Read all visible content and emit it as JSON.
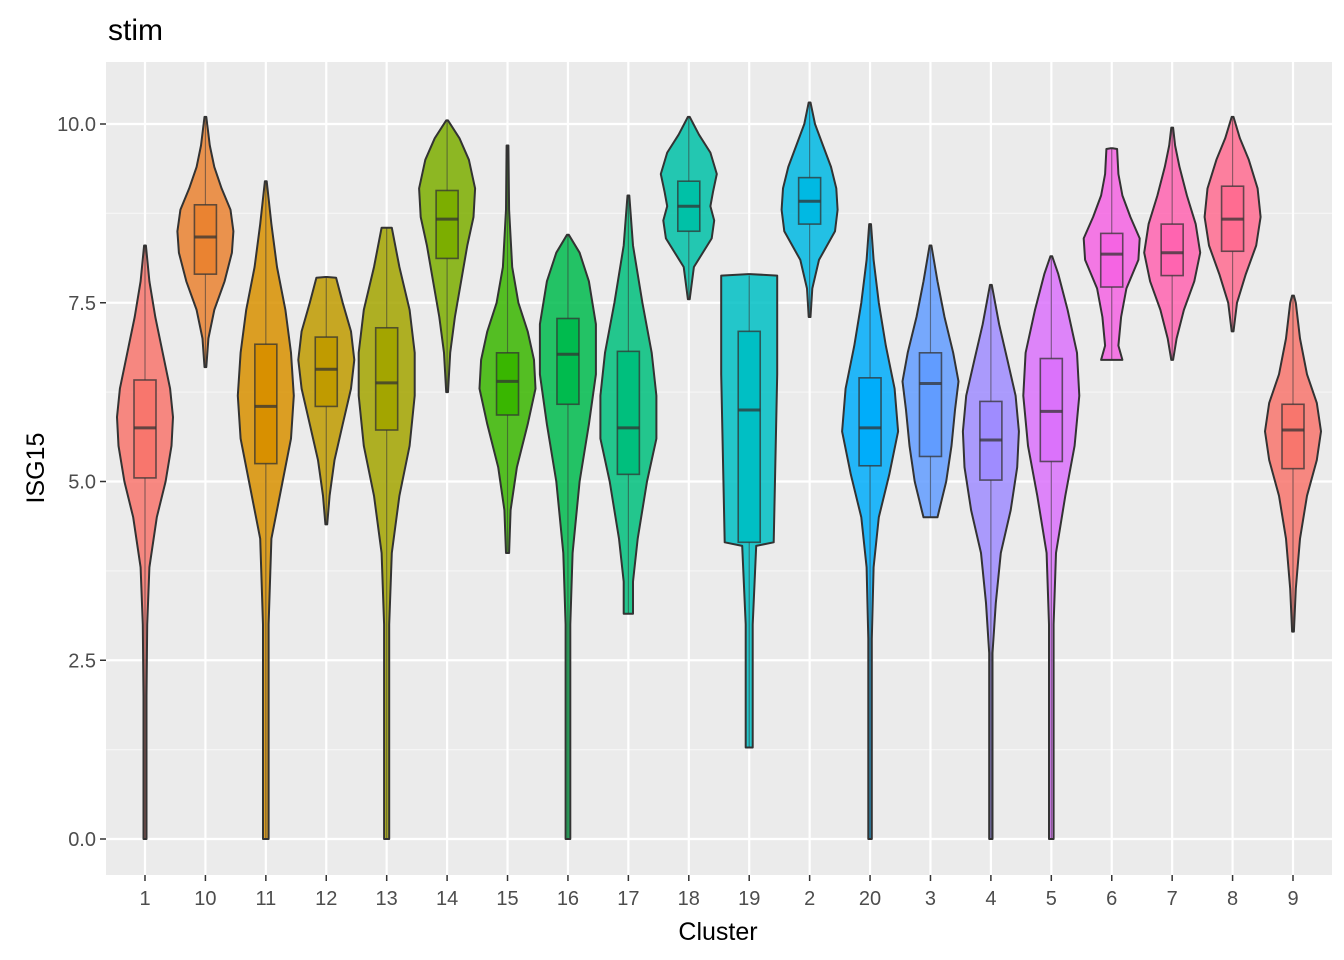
{
  "chart_data": {
    "type": "violin",
    "title": "stim",
    "xlabel": "Cluster",
    "ylabel": "ISG15",
    "ylim": [
      -0.5,
      10.8
    ],
    "yticks": [
      0.0,
      2.5,
      5.0,
      7.5,
      10.0
    ],
    "ytick_labels": [
      "0.0",
      "2.5",
      "5.0",
      "7.5",
      "10.0"
    ],
    "grid": true,
    "legend": "none",
    "categories": [
      "1",
      "10",
      "11",
      "12",
      "13",
      "14",
      "15",
      "16",
      "17",
      "18",
      "19",
      "2",
      "20",
      "3",
      "4",
      "5",
      "6",
      "7",
      "8",
      "9"
    ],
    "series": [
      {
        "name": "1",
        "color": "#F8766D",
        "min": 0.0,
        "max": 8.3,
        "q1": 5.05,
        "median": 5.75,
        "q3": 6.42,
        "profile": [
          [
            0.0,
            1
          ],
          [
            2.0,
            1
          ],
          [
            3.0,
            1.5
          ],
          [
            3.8,
            3
          ],
          [
            4.5,
            8
          ],
          [
            5.0,
            14
          ],
          [
            5.5,
            18
          ],
          [
            5.9,
            19
          ],
          [
            6.3,
            17
          ],
          [
            6.8,
            12
          ],
          [
            7.3,
            7
          ],
          [
            7.8,
            3
          ],
          [
            8.3,
            0
          ]
        ]
      },
      {
        "name": "10",
        "color": "#EA8331",
        "min": 6.6,
        "max": 10.1,
        "q1": 7.9,
        "median": 8.42,
        "q3": 8.87,
        "profile": [
          [
            6.6,
            0
          ],
          [
            7.0,
            2
          ],
          [
            7.4,
            6
          ],
          [
            7.8,
            13
          ],
          [
            8.2,
            18
          ],
          [
            8.5,
            19
          ],
          [
            8.8,
            17
          ],
          [
            9.1,
            11
          ],
          [
            9.4,
            6
          ],
          [
            9.7,
            3
          ],
          [
            10.1,
            0
          ]
        ]
      },
      {
        "name": "11",
        "color": "#D89000",
        "min": 0.0,
        "max": 9.2,
        "q1": 5.25,
        "median": 6.05,
        "q3": 6.92,
        "profile": [
          [
            0.0,
            1
          ],
          [
            3.0,
            1
          ],
          [
            4.2,
            2
          ],
          [
            5.0,
            6
          ],
          [
            5.6,
            9
          ],
          [
            6.2,
            10
          ],
          [
            6.8,
            9
          ],
          [
            7.4,
            7
          ],
          [
            8.0,
            4
          ],
          [
            8.6,
            2
          ],
          [
            9.2,
            0
          ]
        ]
      },
      {
        "name": "12",
        "color": "#C09B00",
        "min": 4.4,
        "max": 7.85,
        "q1": 6.05,
        "median": 6.57,
        "q3": 7.02,
        "profile": [
          [
            4.4,
            0
          ],
          [
            4.8,
            2
          ],
          [
            5.3,
            5
          ],
          [
            5.8,
            10
          ],
          [
            6.3,
            15
          ],
          [
            6.7,
            17
          ],
          [
            7.1,
            15
          ],
          [
            7.5,
            10
          ],
          [
            7.85,
            6
          ],
          [
            7.86,
            0
          ]
        ]
      },
      {
        "name": "13",
        "color": "#A3A500",
        "min": 0.0,
        "max": 8.55,
        "q1": 5.72,
        "median": 6.38,
        "q3": 7.15,
        "profile": [
          [
            0.0,
            1
          ],
          [
            3.0,
            1
          ],
          [
            4.0,
            2
          ],
          [
            4.8,
            5
          ],
          [
            5.5,
            9
          ],
          [
            6.2,
            11
          ],
          [
            6.8,
            11
          ],
          [
            7.4,
            9
          ],
          [
            8.0,
            5
          ],
          [
            8.55,
            2
          ]
        ]
      },
      {
        "name": "14",
        "color": "#7CAE00",
        "min": 6.25,
        "max": 10.05,
        "q1": 8.12,
        "median": 8.67,
        "q3": 9.07,
        "profile": [
          [
            6.25,
            0
          ],
          [
            6.8,
            2
          ],
          [
            7.3,
            5
          ],
          [
            7.8,
            9
          ],
          [
            8.3,
            13
          ],
          [
            8.7,
            17
          ],
          [
            9.1,
            18
          ],
          [
            9.5,
            14
          ],
          [
            9.8,
            8
          ],
          [
            10.05,
            0
          ]
        ]
      },
      {
        "name": "15",
        "color": "#39B600",
        "min": 4.0,
        "max": 9.7,
        "q1": 5.93,
        "median": 6.4,
        "q3": 6.8,
        "profile": [
          [
            4.0,
            1
          ],
          [
            4.6,
            2
          ],
          [
            5.2,
            6
          ],
          [
            5.8,
            13
          ],
          [
            6.3,
            18
          ],
          [
            6.7,
            17
          ],
          [
            7.1,
            13
          ],
          [
            7.5,
            7
          ],
          [
            8.0,
            3
          ],
          [
            8.8,
            1
          ],
          [
            9.7,
            0
          ]
        ]
      },
      {
        "name": "16",
        "color": "#00BB4E",
        "min": 0.0,
        "max": 8.45,
        "q1": 6.08,
        "median": 6.78,
        "q3": 7.28,
        "profile": [
          [
            0.0,
            1
          ],
          [
            3.0,
            1
          ],
          [
            4.0,
            2
          ],
          [
            5.0,
            5
          ],
          [
            5.8,
            9
          ],
          [
            6.5,
            12
          ],
          [
            7.2,
            12
          ],
          [
            7.8,
            9
          ],
          [
            8.2,
            5
          ],
          [
            8.45,
            0
          ]
        ]
      },
      {
        "name": "17",
        "color": "#00BF7D",
        "min": 3.15,
        "max": 9.0,
        "q1": 5.1,
        "median": 5.75,
        "q3": 6.82,
        "profile": [
          [
            3.15,
            1
          ],
          [
            3.6,
            1
          ],
          [
            4.2,
            2
          ],
          [
            5.0,
            4
          ],
          [
            5.6,
            6
          ],
          [
            6.2,
            6
          ],
          [
            6.8,
            5
          ],
          [
            7.5,
            3
          ],
          [
            8.3,
            1
          ],
          [
            9.0,
            0
          ]
        ]
      },
      {
        "name": "18",
        "color": "#00C1A7",
        "min": 7.55,
        "max": 10.1,
        "q1": 8.5,
        "median": 8.85,
        "q3": 9.2,
        "profile": [
          [
            7.55,
            0
          ],
          [
            8.0,
            4
          ],
          [
            8.4,
            18
          ],
          [
            8.65,
            20
          ],
          [
            8.85,
            17
          ],
          [
            9.05,
            19
          ],
          [
            9.3,
            22
          ],
          [
            9.6,
            17
          ],
          [
            9.85,
            8
          ],
          [
            10.1,
            0
          ]
        ]
      },
      {
        "name": "19",
        "color": "#00BFC4",
        "min": 1.28,
        "max": 7.88,
        "q1": 4.15,
        "median": 6.0,
        "q3": 7.1,
        "profile": [
          [
            1.28,
            1
          ],
          [
            3.0,
            1
          ],
          [
            4.1,
            2
          ],
          [
            4.15,
            7
          ],
          [
            6.5,
            8
          ],
          [
            7.7,
            8
          ],
          [
            7.88,
            8
          ],
          [
            7.9,
            0
          ]
        ]
      },
      {
        "name": "2",
        "color": "#00B9E3",
        "min": 7.3,
        "max": 10.3,
        "q1": 8.6,
        "median": 8.92,
        "q3": 9.25,
        "profile": [
          [
            7.3,
            0
          ],
          [
            7.7,
            2
          ],
          [
            8.1,
            7
          ],
          [
            8.5,
            19
          ],
          [
            8.8,
            21
          ],
          [
            9.1,
            20
          ],
          [
            9.4,
            16
          ],
          [
            9.7,
            10
          ],
          [
            10.0,
            4
          ],
          [
            10.3,
            0
          ]
        ]
      },
      {
        "name": "20",
        "color": "#00ADFA",
        "min": 0.0,
        "max": 8.6,
        "q1": 5.22,
        "median": 5.75,
        "q3": 6.45,
        "profile": [
          [
            0.0,
            1
          ],
          [
            2.8,
            1
          ],
          [
            3.8,
            2
          ],
          [
            4.5,
            5
          ],
          [
            5.1,
            11
          ],
          [
            5.7,
            16
          ],
          [
            6.3,
            14
          ],
          [
            6.9,
            9
          ],
          [
            7.5,
            5
          ],
          [
            8.1,
            2
          ],
          [
            8.6,
            0
          ]
        ]
      },
      {
        "name": "3",
        "color": "#619CFF",
        "min": 4.5,
        "max": 8.3,
        "q1": 5.35,
        "median": 6.37,
        "q3": 6.8,
        "profile": [
          [
            4.5,
            4
          ],
          [
            4.6,
            5
          ],
          [
            5.0,
            9
          ],
          [
            5.5,
            12
          ],
          [
            6.0,
            14
          ],
          [
            6.4,
            16
          ],
          [
            6.8,
            13
          ],
          [
            7.3,
            8
          ],
          [
            7.8,
            4
          ],
          [
            8.3,
            0
          ]
        ]
      },
      {
        "name": "4",
        "color": "#9F8CFF",
        "min": 0.0,
        "max": 7.75,
        "q1": 5.02,
        "median": 5.58,
        "q3": 6.12,
        "profile": [
          [
            0.0,
            1
          ],
          [
            2.6,
            1
          ],
          [
            3.3,
            3
          ],
          [
            4.0,
            6
          ],
          [
            4.6,
            12
          ],
          [
            5.2,
            16
          ],
          [
            5.7,
            17
          ],
          [
            6.2,
            15
          ],
          [
            6.7,
            10
          ],
          [
            7.2,
            5
          ],
          [
            7.75,
            0
          ]
        ]
      },
      {
        "name": "5",
        "color": "#DB72FB",
        "min": 0.0,
        "max": 8.15,
        "q1": 5.28,
        "median": 5.98,
        "q3": 6.72,
        "profile": [
          [
            0.0,
            1
          ],
          [
            3.0,
            1
          ],
          [
            4.0,
            2
          ],
          [
            4.8,
            6
          ],
          [
            5.5,
            10
          ],
          [
            6.2,
            12
          ],
          [
            6.8,
            11
          ],
          [
            7.4,
            7
          ],
          [
            7.9,
            3
          ],
          [
            8.15,
            0
          ]
        ]
      },
      {
        "name": "6",
        "color": "#F564E3",
        "min": 6.7,
        "max": 9.65,
        "q1": 7.72,
        "median": 8.18,
        "q3": 8.47,
        "profile": [
          [
            6.7,
            8
          ],
          [
            6.9,
            5
          ],
          [
            7.3,
            7
          ],
          [
            7.7,
            11
          ],
          [
            8.1,
            20
          ],
          [
            8.4,
            21
          ],
          [
            8.7,
            14
          ],
          [
            9.0,
            8
          ],
          [
            9.3,
            5
          ],
          [
            9.65,
            4
          ],
          [
            9.66,
            0
          ]
        ]
      },
      {
        "name": "7",
        "color": "#FF64B0",
        "min": 6.7,
        "max": 9.95,
        "q1": 7.88,
        "median": 8.2,
        "q3": 8.6,
        "profile": [
          [
            6.7,
            0
          ],
          [
            7.0,
            3
          ],
          [
            7.4,
            8
          ],
          [
            7.8,
            15
          ],
          [
            8.2,
            19
          ],
          [
            8.6,
            16
          ],
          [
            9.0,
            10
          ],
          [
            9.4,
            5
          ],
          [
            9.7,
            2
          ],
          [
            9.95,
            0
          ]
        ]
      },
      {
        "name": "8",
        "color": "#FF6C91",
        "min": 7.1,
        "max": 10.1,
        "q1": 8.22,
        "median": 8.67,
        "q3": 9.13,
        "profile": [
          [
            7.1,
            0
          ],
          [
            7.5,
            3
          ],
          [
            7.9,
            9
          ],
          [
            8.3,
            16
          ],
          [
            8.7,
            19
          ],
          [
            9.1,
            17
          ],
          [
            9.5,
            11
          ],
          [
            9.8,
            5
          ],
          [
            10.1,
            0
          ]
        ]
      },
      {
        "name": "9",
        "color": "#F8766D",
        "min": 2.9,
        "max": 7.6,
        "q1": 5.18,
        "median": 5.72,
        "q3": 6.08,
        "profile": [
          [
            2.9,
            0
          ],
          [
            3.5,
            2
          ],
          [
            4.2,
            5
          ],
          [
            4.8,
            10
          ],
          [
            5.3,
            17
          ],
          [
            5.7,
            20
          ],
          [
            6.1,
            17
          ],
          [
            6.5,
            10
          ],
          [
            7.0,
            5
          ],
          [
            7.5,
            2
          ],
          [
            7.6,
            0
          ]
        ]
      }
    ]
  }
}
